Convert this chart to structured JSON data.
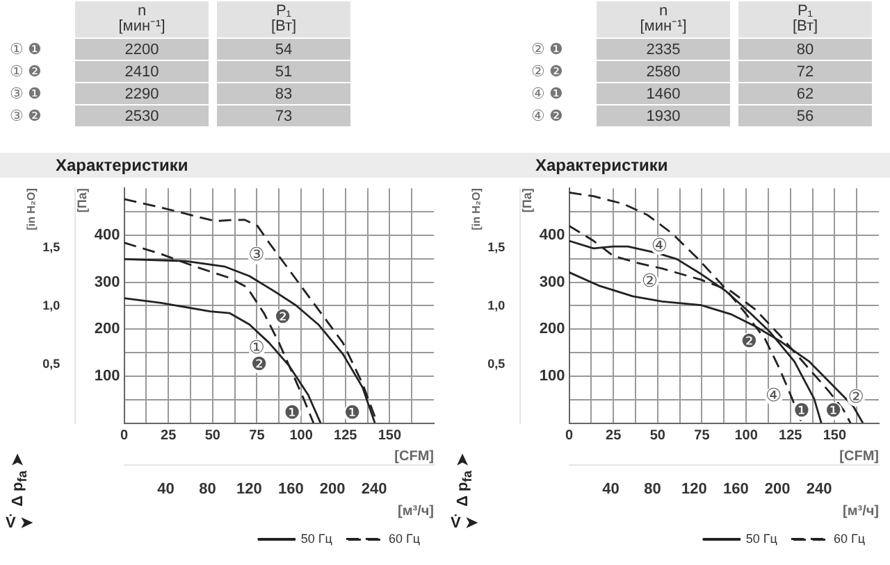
{
  "chart_data": [
    {
      "type": "other",
      "categories": [
        "① ❶",
        "① ❷",
        "③ ❶",
        "③ ❷"
      ],
      "data_labels": true,
      "series": [
        {
          "name": "n [мин⁻¹]",
          "values": [
            2200,
            2410,
            2290,
            2530
          ]
        },
        {
          "name": "P₁ [Вт]",
          "values": [
            54,
            51,
            83,
            73
          ]
        }
      ]
    },
    {
      "type": "other",
      "categories": [
        "② ❶",
        "② ❷",
        "④ ❶",
        "④ ❷"
      ],
      "data_labels": true,
      "series": [
        {
          "name": "n [мин⁻¹]",
          "values": [
            2335,
            2580,
            1460,
            1930
          ]
        },
        {
          "name": "P₁ [Вт]",
          "values": [
            80,
            72,
            62,
            56
          ]
        }
      ]
    },
    {
      "type": "line",
      "title": "Характеристики",
      "xlabel": "[CFM]",
      "x2label": "[м³/ч]",
      "ylabel": "[Па]",
      "y2label": "[in H₂O]",
      "xlim": [
        0,
        175
      ],
      "xticks": [
        0,
        {
          "value": 12.5,
          "label": null
        },
        25,
        {
          "value": 37.5,
          "label": null
        },
        50,
        {
          "value": 62.5,
          "label": null
        },
        75,
        {
          "value": 87.5,
          "label": null
        },
        100,
        {
          "value": 112.5,
          "label": null
        },
        125,
        {
          "value": 137.5,
          "label": null
        },
        150,
        {
          "value": 162.5,
          "label": null
        }
      ],
      "x2lim": [
        0,
        297.3
      ],
      "x2ticks": [
        40,
        80,
        120,
        160,
        200,
        240
      ],
      "ylim": [
        0,
        500
      ],
      "yticks": [
        {
          "value": 50,
          "label": null
        },
        100,
        {
          "value": 150,
          "label": null
        },
        200,
        {
          "value": 250,
          "label": null
        },
        300,
        {
          "value": 350,
          "label": null
        },
        400,
        {
          "value": 450,
          "label": null
        }
      ],
      "y2lim": [
        0,
        2.007
      ],
      "y2ticks": [
        {
          "value": 0.5,
          "label": "0,5"
        },
        {
          "value": 1.0,
          "label": "1,0"
        },
        {
          "value": 1.5,
          "label": "1,5"
        }
      ],
      "grid": true,
      "legend": "bottom right",
      "marker": "none",
      "series": [
        {
          "name": "50 Гц",
          "color": "#222222",
          "line_style": "solid",
          "x": [
            0,
            20.8,
            48.6,
            59.7,
            70.8,
            81.9,
            93,
            104,
            111
          ],
          "values": [
            266,
            256,
            238,
            234,
            210,
            171,
            123,
            60,
            0
          ]
        },
        {
          "color": "#222222",
          "line_style": "solid",
          "x": [
            0,
            34.7,
            57,
            70.8,
            84.7,
            97,
            109.7,
            123.6,
            134.7,
            141.7
          ],
          "values": [
            349,
            345,
            333,
            313,
            281,
            251,
            210,
            147,
            76,
            0
          ]
        },
        {
          "name": "60 Гц",
          "color": "#222222",
          "line_style": "dashed",
          "x": [
            0,
            20.8,
            40.3,
            59.7,
            69.4,
            79,
            87.5,
            95.8,
            101.4,
            107
          ],
          "values": [
            384,
            360,
            333,
            309,
            289,
            234,
            171,
            100,
            52,
            0
          ]
        },
        {
          "color": "#222222",
          "line_style": "dashed",
          "x": [
            0,
            20.8,
            51.4,
            59.7,
            68,
            75.3,
            81.9,
            95.8,
            109.7,
            123.6,
            134.7,
            143
          ],
          "values": [
            477,
            459,
            430,
            432,
            433,
            420,
            384,
            313,
            242,
            171,
            84,
            0
          ]
        }
      ],
      "annotations": [
        "Δ p$_{fa}$ ➤",
        "V̇ ➤",
        {
          "text": "③",
          "x": 81.9,
          "y": 384
        },
        {
          "text": "①",
          "x": 82,
          "y": 187
        },
        {
          "text": "❷",
          "x": 83.3,
          "y": 151
        },
        {
          "text": "❷",
          "x": 96.7,
          "y": 251
        },
        {
          "text": "❶",
          "x": 102,
          "y": 48
        },
        {
          "text": "❶",
          "x": 136,
          "y": 48
        }
      ]
    },
    {
      "type": "line",
      "title": "Характеристики",
      "xlabel": "[CFM]",
      "x2label": "[м³/ч]",
      "ylabel": "[Па]",
      "y2label": "[in H₂O]",
      "xlim": [
        0,
        175
      ],
      "xticks": [
        0,
        {
          "value": 12.5,
          "label": null
        },
        25,
        {
          "value": 37.5,
          "label": null
        },
        50,
        {
          "value": 62.5,
          "label": null
        },
        75,
        {
          "value": 87.5,
          "label": null
        },
        100,
        {
          "value": 112.5,
          "label": null
        },
        125,
        {
          "value": 137.5,
          "label": null
        },
        150,
        {
          "value": 162.5,
          "label": null
        }
      ],
      "x2lim": [
        0,
        297.3
      ],
      "x2ticks": [
        40,
        80,
        120,
        160,
        200,
        240
      ],
      "ylim": [
        0,
        500
      ],
      "yticks": [
        {
          "value": 50,
          "label": null
        },
        100,
        {
          "value": 150,
          "label": null
        },
        200,
        {
          "value": 250,
          "label": null
        },
        300,
        {
          "value": 350,
          "label": null
        },
        400,
        {
          "value": 450,
          "label": null
        }
      ],
      "y2lim": [
        0,
        2.007
      ],
      "y2ticks": [
        {
          "value": 0.5,
          "label": "0,5"
        },
        {
          "value": 1.0,
          "label": "1,0"
        },
        {
          "value": 1.5,
          "label": "1,5"
        }
      ],
      "grid": true,
      "legend": "bottom right",
      "marker": "none",
      "series": [
        {
          "name": "50 Гц",
          "color": "#222222",
          "line_style": "solid",
          "x": [
            0,
            16.6,
            36,
            52.6,
            74.7,
            91.3,
            105.2,
            119,
            135.7,
            156.4,
            160.5,
            166
          ],
          "values": [
            321,
            293,
            270,
            259,
            251,
            232,
            206,
            175,
            131,
            52,
            36,
            0
          ]
        },
        {
          "color": "#222222",
          "line_style": "solid",
          "x": [
            0,
            13.8,
            24.9,
            33.2,
            49.8,
            60.9,
            74.7,
            88.6,
            102.4,
            113.5,
            127.3,
            138.4,
            142.5
          ],
          "values": [
            388,
            372,
            376,
            376,
            362,
            349,
            317,
            281,
            234,
            194,
            131,
            52,
            0
          ]
        },
        {
          "name": "60 Гц",
          "color": "#222222",
          "line_style": "dashed",
          "x": [
            0,
            13.8,
            24.9,
            38.7,
            52.6,
            74.7,
            91.3,
            105.2,
            119,
            135.7,
            146.7,
            155,
            159
          ],
          "values": [
            420,
            388,
            356,
            341,
            329,
            305,
            281,
            242,
            187,
            115,
            68,
            28,
            0
          ]
        },
        {
          "color": "#222222",
          "line_style": "dashed",
          "x": [
            0,
            13.8,
            30.4,
            44.3,
            58.1,
            72,
            85.8,
            99.6,
            110.7,
            119,
            126,
            131.5
          ],
          "values": [
            491,
            483,
            467,
            443,
            404,
            353,
            297,
            234,
            179,
            115,
            52,
            0
          ]
        }
      ],
      "annotations": [
        "Δ p$_{fa}$ ➤",
        "V̇ ➤",
        {
          "text": "④",
          "x": 58.1,
          "y": 404
        },
        {
          "text": "②",
          "x": 52.6,
          "y": 329
        },
        {
          "text": "❷",
          "x": 108.8,
          "y": 200
        },
        {
          "text": "④",
          "x": 122.6,
          "y": 84
        },
        {
          "text": "❶",
          "x": 138.4,
          "y": 52
        },
        {
          "text": "❶",
          "x": 156.4,
          "y": 52
        },
        {
          "text": "②",
          "x": 155,
          "y": 28
        }
      ]
    }
  ]
}
